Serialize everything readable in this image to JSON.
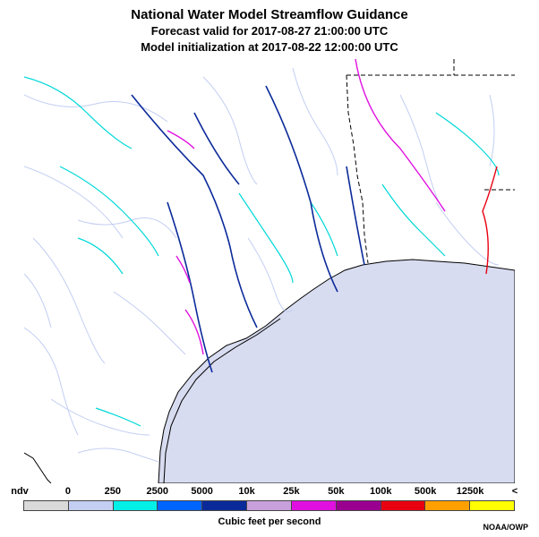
{
  "title": {
    "main": "National Water Model Streamflow Guidance",
    "forecast": "Forecast valid for 2017-08-27 21:00:00 UTC",
    "init": "Model initialization at 2017-08-22 12:00:00 UTC"
  },
  "legend": {
    "bins": [
      {
        "label": "ndv",
        "color": "#d9d9d9"
      },
      {
        "label": "0",
        "color": "#c3cef2"
      },
      {
        "label": "250",
        "color": "#00f0e8"
      },
      {
        "label": "2500",
        "color": "#0064ff"
      },
      {
        "label": "5000",
        "color": "#0b2a9a"
      },
      {
        "label": "10k",
        "color": "#c8a0dc"
      },
      {
        "label": "25k",
        "color": "#e010e0"
      },
      {
        "label": "50k",
        "color": "#9a0090"
      },
      {
        "label": "100k",
        "color": "#e80010"
      },
      {
        "label": "500k",
        "color": "#ffa000"
      },
      {
        "label": "1250k",
        "color": "#ffff00"
      }
    ],
    "overflow_label": "<",
    "caption": "Cubic feet per second"
  },
  "credit": "NOAA/OWP",
  "colors": {
    "water": "#d8dcf0",
    "coast": "#000000",
    "state_border": "#000000"
  }
}
